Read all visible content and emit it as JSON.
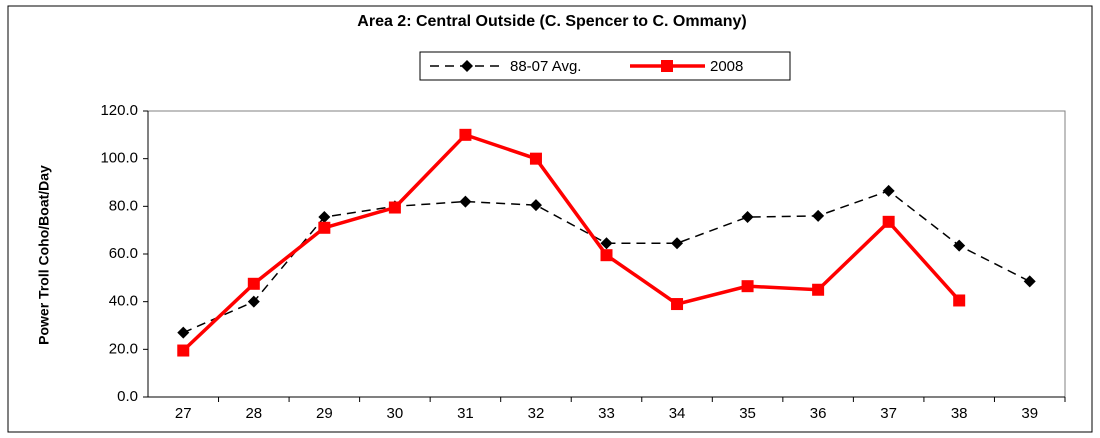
{
  "chart_data": {
    "type": "line",
    "title": "Area 2: Central Outside (C. Spencer to C. Ommany)",
    "y_label": "Power Troll Coho/Boat/Day",
    "categories": [
      "27",
      "28",
      "29",
      "30",
      "31",
      "32",
      "33",
      "34",
      "35",
      "36",
      "37",
      "38",
      "39"
    ],
    "series": [
      {
        "name": "88-07 Avg.",
        "color": "#000000",
        "dash": true,
        "marker": "diamond",
        "values": [
          27,
          40,
          75.5,
          80,
          82,
          80.5,
          64.5,
          64.5,
          75.5,
          76,
          86.5,
          63.5,
          48.5
        ]
      },
      {
        "name": "2008",
        "color": "#ff0000",
        "dash": false,
        "marker": "square",
        "values": [
          19.5,
          47.5,
          71,
          79.5,
          110,
          100,
          59.5,
          39,
          46.5,
          45,
          73.5,
          40.5,
          null
        ]
      }
    ],
    "ylim": [
      0,
      120
    ],
    "yticks": [
      {
        "value": 0,
        "label": "0.0"
      },
      {
        "value": 20,
        "label": "20.0"
      },
      {
        "value": 40,
        "label": "40.0"
      },
      {
        "value": 60,
        "label": "60.0"
      },
      {
        "value": 80,
        "label": "80.0"
      },
      {
        "value": 100,
        "label": "100.0"
      },
      {
        "value": 120,
        "label": "120.0"
      }
    ],
    "legend": "top",
    "grid": false
  }
}
